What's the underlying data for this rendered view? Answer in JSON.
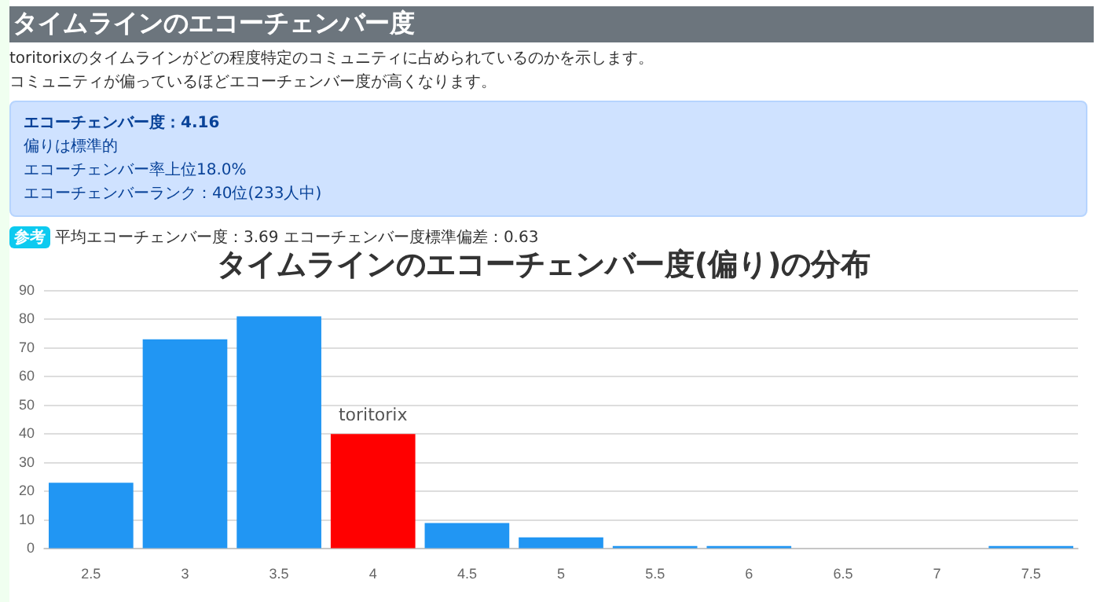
{
  "chart_data": {
    "type": "bar",
    "title": "タイムラインのエコーチェンバー度(偏り)の分布",
    "categories": [
      "2.5",
      "3",
      "3.5",
      "4",
      "4.5",
      "5",
      "5.5",
      "6",
      "6.5",
      "7",
      "7.5"
    ],
    "values": [
      23,
      73,
      81,
      40,
      9,
      4,
      1,
      1,
      0,
      0,
      1
    ],
    "colors": [
      "#2196f3",
      "#2196f3",
      "#2196f3",
      "#ff0000",
      "#2196f3",
      "#2196f3",
      "#2196f3",
      "#2196f3",
      "#2196f3",
      "#2196f3",
      "#2196f3"
    ],
    "ylim": [
      0,
      90
    ],
    "yticks": [
      0,
      10,
      20,
      30,
      40,
      50,
      60,
      70,
      80,
      90
    ],
    "grid": "y",
    "legend": false,
    "annotations": [
      "タイムラインのエコーチェンバー度",
      "toritorixのタイムラインがどの程度特定のコミュニティに占められているのかを示します。",
      "コミュニティが偏っているほどエコーチェンバー度が高くなります。",
      "エコーチェンバー度：4.16",
      "偏りは標準的",
      "エコーチェンバー率上位18.0%",
      "エコーチェンバーランク：40位(233人中)",
      "参考",
      "平均エコーチェンバー度：3.69 エコーチェンバー度標準偏差：0.63",
      {
        "text": "toritorix",
        "x": "4",
        "y": 40
      }
    ]
  }
}
